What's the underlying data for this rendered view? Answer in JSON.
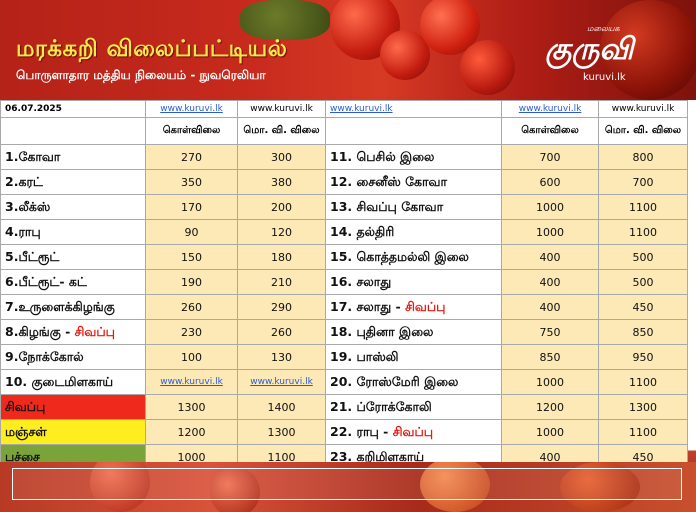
{
  "header": {
    "title": "மரக்கறி விலைப்பட்டியல்",
    "subtitle": "பொருளாதார மத்திய நிலையம் - நுவரெலியா",
    "logo_tag": "மலையக",
    "logo_mark": "குருவி",
    "logo_url": "kuruvi.lk"
  },
  "table": {
    "date": "06.07.2025",
    "top_links": [
      "www.kuruvi.lk",
      "www.kuruvi.lk",
      "www.kuruvi.lk",
      "www.kuruvi.lk",
      "www.kuruvi.lk"
    ],
    "col_wholesale": "கொள்விலை",
    "col_retail": "மொ. வி. விலை",
    "left_rows": [
      {
        "item": "1.கோவா",
        "w": "270",
        "r": "300"
      },
      {
        "item": "2.கரட்",
        "w": "350",
        "r": "380"
      },
      {
        "item": "3.லீக்ஸ்",
        "w": "170",
        "r": "200"
      },
      {
        "item": "4.ராபு",
        "w": "90",
        "r": "120"
      },
      {
        "item": "5.பீட்ரூட்",
        "w": "150",
        "r": "180"
      },
      {
        "item": "6.பீட்ரூட்- கட்",
        "w": "190",
        "r": "210"
      },
      {
        "item": "7.உருளைக்கிழங்கு",
        "w": "260",
        "r": "290"
      },
      {
        "item": "8.கிழங்கு - ",
        "item_red": "சிவப்பு",
        "w": "230",
        "r": "260"
      },
      {
        "item": "9.நோக்கோல்",
        "w": "100",
        "r": "130"
      },
      {
        "item": "10. குடைமிளகாய்",
        "w": "www.kuruvi.lk",
        "r": "www.kuruvi.lk"
      },
      {
        "item": "சிவப்பு",
        "w": "1300",
        "r": "1400"
      },
      {
        "item": "மஞ்சள்",
        "w": "1200",
        "r": "1300"
      },
      {
        "item": "பச்சை",
        "w": "1000",
        "r": "1100"
      }
    ],
    "right_rows": [
      {
        "item": "11. பெசில் இலை",
        "w": "700",
        "r": "800"
      },
      {
        "item": "12. சைனீஸ் கோவா",
        "w": "600",
        "r": "700"
      },
      {
        "item": "13. சிவப்பு கோவா",
        "w": "1000",
        "r": "1100"
      },
      {
        "item": "14. தல்திரி",
        "w": "1000",
        "r": "1100"
      },
      {
        "item": "15. கொத்தமல்லி இலை",
        "w": "400",
        "r": "500"
      },
      {
        "item": "16. சலாது",
        "w": "400",
        "r": "500"
      },
      {
        "item": "17. சலாது - ",
        "item_red": "சிவப்பு",
        "w": "400",
        "r": "450"
      },
      {
        "item": "18. புதினா இலை",
        "w": "750",
        "r": "850"
      },
      {
        "item": "19. பாஸ்லி",
        "w": "850",
        "r": "950"
      },
      {
        "item": "20. ரோஸ்மேரி இலை",
        "w": "1000",
        "r": "1100"
      },
      {
        "item": "21. ப்ரோக்கோலி",
        "w": "1200",
        "r": "1300"
      },
      {
        "item": "22. ராபு - ",
        "item_red": "சிவப்பு",
        "w": "1000",
        "r": "1100"
      },
      {
        "item": "23. கறிமிளகாய்",
        "w": "400",
        "r": "450"
      }
    ]
  }
}
